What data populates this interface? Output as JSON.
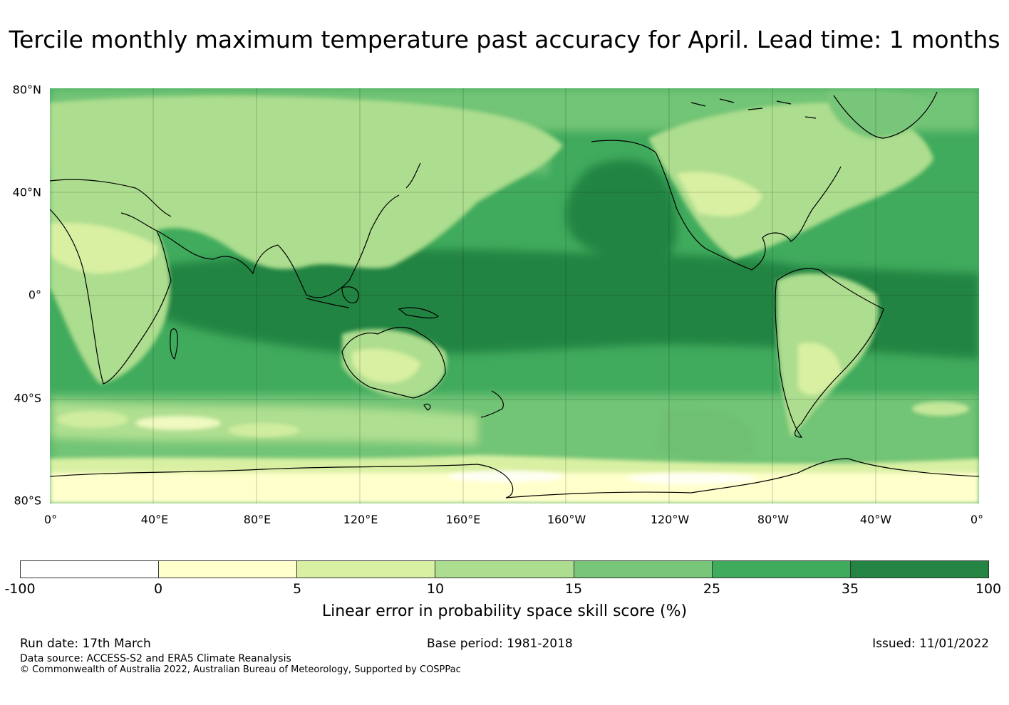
{
  "title": "Tercile monthly maximum temperature past accuracy for April. Lead time: 1 months",
  "map": {
    "latitude_labels": [
      "80°N",
      "40°N",
      "0°",
      "40°S",
      "80°S"
    ],
    "longitude_labels": [
      "0°",
      "40°E",
      "80°E",
      "120°E",
      "160°E",
      "160°W",
      "120°W",
      "80°W",
      "40°W",
      "0°"
    ]
  },
  "colorbar": {
    "tick_labels": [
      "-100",
      "0",
      "5",
      "10",
      "15",
      "25",
      "35",
      "100"
    ],
    "colors": [
      "#ffffff",
      "#ffffcc",
      "#d9f0a3",
      "#addd8e",
      "#78c679",
      "#41ab5d",
      "#238443"
    ],
    "label": "Linear error in probability space skill score (%)"
  },
  "footer": {
    "run_date": "Run date: 17th March",
    "base_period": "Base period: 1981-2018",
    "issued": "Issued: 11/01/2022",
    "data_source": "Data source: ACCESS-S2 and ERA5 Climate Reanalysis",
    "copyright": "© Commonwealth of Australia 2022, Australian Bureau of Meteorology, Supported by COSPPac"
  }
}
